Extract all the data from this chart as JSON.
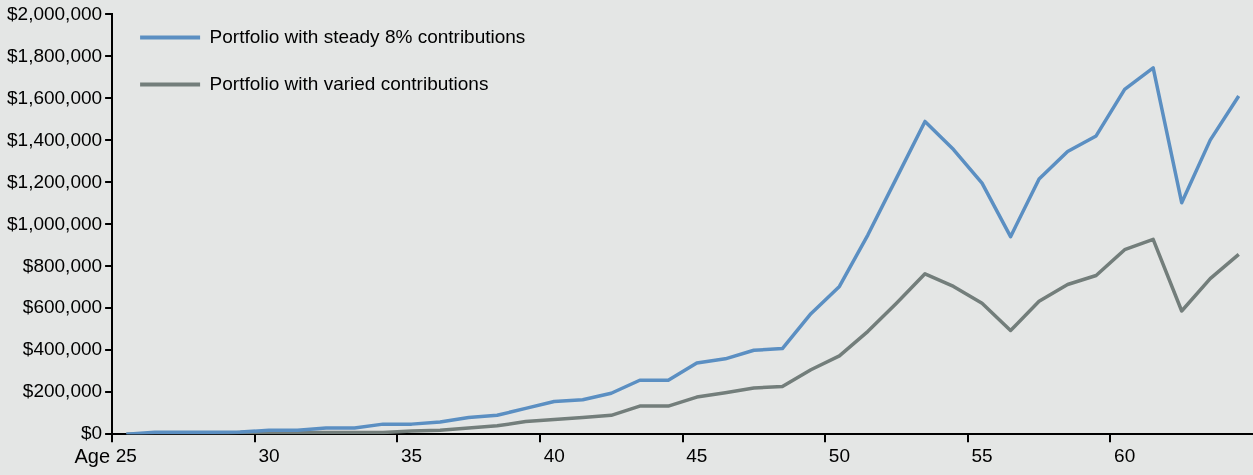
{
  "chart_data": {
    "type": "line",
    "xlabel": "Age",
    "categories": [
      "25",
      null,
      null,
      null,
      null,
      "30",
      null,
      null,
      null,
      null,
      "35",
      null,
      null,
      null,
      null,
      "40",
      null,
      null,
      null,
      null,
      "45",
      null,
      null,
      null,
      null,
      "50",
      null,
      null,
      null,
      null,
      "55",
      null,
      null,
      null,
      null,
      "60",
      null,
      null,
      null,
      null
    ],
    "series": [
      {
        "name": "Portfolio with steady 8% contributions",
        "color": "#5b8fc2",
        "values": [
          0,
          9000,
          9000,
          9000,
          10000,
          19000,
          19000,
          30000,
          30000,
          48000,
          48000,
          58000,
          80000,
          90000,
          123000,
          156000,
          164000,
          195000,
          257000,
          257000,
          339000,
          359000,
          400000,
          408000,
          574000,
          704000,
          950000,
          1220000,
          1490000,
          1356000,
          1196000,
          941000,
          1216000,
          1347000,
          1421000,
          1643000,
          1745000,
          1103000,
          1401000,
          1611000
        ]
      },
      {
        "name": "Portfolio with varied contributions",
        "color": "#737e7b",
        "values": [
          0,
          0,
          0,
          0,
          8000,
          8000,
          8000,
          8000,
          8000,
          8000,
          15000,
          19000,
          30000,
          40000,
          60000,
          70000,
          80000,
          90000,
          134000,
          134000,
          177000,
          197000,
          220000,
          227000,
          307000,
          373000,
          490000,
          624000,
          764000,
          704000,
          624000,
          494000,
          633000,
          713000,
          756000,
          879000,
          928000,
          587000,
          741000,
          857000
        ]
      }
    ],
    "ylim": [
      0,
      2000000
    ],
    "yticks": [
      {
        "value": 0,
        "label": "$0"
      },
      {
        "value": 200000,
        "label": "$200,000"
      },
      {
        "value": 400000,
        "label": "$400,000"
      },
      {
        "value": 600000,
        "label": "$600,000"
      },
      {
        "value": 800000,
        "label": "$800,000"
      },
      {
        "value": 1000000,
        "label": "$1,000,000"
      },
      {
        "value": 1200000,
        "label": "$1,200,000"
      },
      {
        "value": 1400000,
        "label": "$1,400,000"
      },
      {
        "value": 1600000,
        "label": "$1,600,000"
      },
      {
        "value": 1800000,
        "label": "$1,800,000"
      },
      {
        "value": 2000000,
        "label": "$2,000,000"
      }
    ],
    "grid": false,
    "legend": "top left",
    "marker": "none",
    "line_style": "solid"
  }
}
